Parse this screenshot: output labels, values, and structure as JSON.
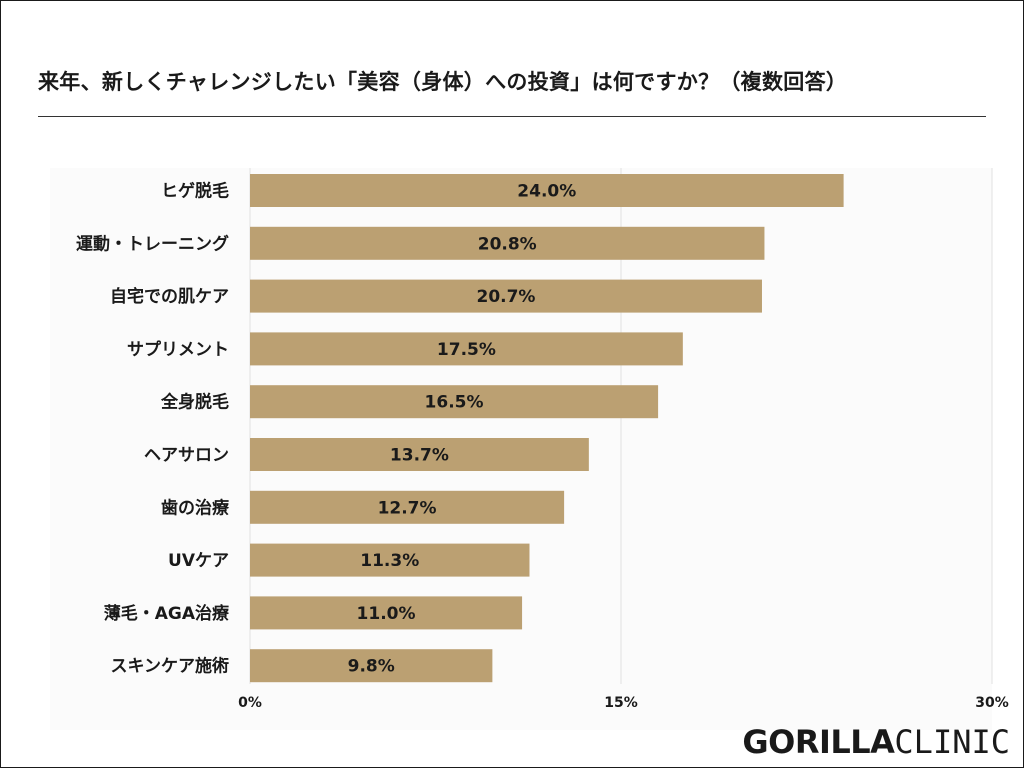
{
  "chart_data": {
    "type": "bar",
    "orientation": "horizontal",
    "title": "来年、新しくチャレンジしたい「美容（身体）への投資」は何ですか？（複数回答）",
    "categories": [
      "ヒゲ脱毛",
      "運動・トレーニング",
      "自宅での肌ケア",
      "サプリメント",
      "全身脱毛",
      "ヘアサロン",
      "歯の治療",
      "UVケア",
      "薄毛・AGA治療",
      "スキンケア施術"
    ],
    "values": [
      24.0,
      20.8,
      20.7,
      17.5,
      16.5,
      13.7,
      12.7,
      11.3,
      11.0,
      9.8
    ],
    "value_labels": [
      "24.0%",
      "20.8%",
      "20.7%",
      "17.5%",
      "16.5%",
      "13.7%",
      "12.7%",
      "11.3%",
      "11.0%",
      "9.8%"
    ],
    "xlim": [
      0,
      30
    ],
    "ticks": [
      0,
      15,
      30
    ],
    "tick_labels": [
      "0%",
      "15%",
      "30%"
    ],
    "xlabel": "",
    "ylabel": "",
    "grid": true,
    "bar_color": "#bba072"
  },
  "logo": {
    "bold": "GORILLA",
    "light": "CLINIC"
  }
}
